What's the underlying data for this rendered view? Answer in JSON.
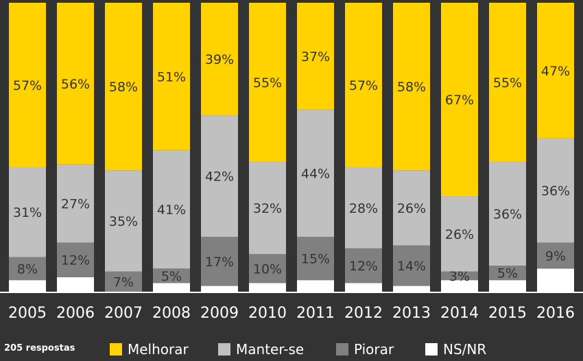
{
  "chart_data": {
    "type": "bar",
    "stacked": true,
    "normalized_percent": true,
    "categories": [
      "2005",
      "2006",
      "2007",
      "2008",
      "2009",
      "2010",
      "2011",
      "2012",
      "2013",
      "2014",
      "2015",
      "2016"
    ],
    "series": [
      {
        "name": "NS/NR",
        "color": "#ffffff",
        "values": [
          4,
          5,
          0,
          3,
          2,
          3,
          4,
          3,
          2,
          4,
          4,
          8
        ],
        "labels": [
          "",
          "",
          "",
          "",
          "",
          "",
          "",
          "",
          "",
          "",
          "",
          ""
        ]
      },
      {
        "name": "Piorar",
        "color": "#808080",
        "values": [
          8,
          12,
          7,
          5,
          17,
          10,
          15,
          12,
          14,
          3,
          5,
          9
        ],
        "labels": [
          "8%",
          "12%",
          "7%",
          "5%",
          "17%",
          "10%",
          "15%",
          "12%",
          "14%",
          "3%",
          "5%",
          "9%"
        ]
      },
      {
        "name": "Manter-se",
        "color": "#c0c0c0",
        "values": [
          31,
          27,
          35,
          41,
          42,
          32,
          44,
          28,
          26,
          26,
          36,
          36
        ],
        "labels": [
          "31%",
          "27%",
          "35%",
          "41%",
          "42%",
          "32%",
          "44%",
          "28%",
          "26%",
          "26%",
          "36%",
          "36%"
        ]
      },
      {
        "name": "Melhorar",
        "color": "#ffd200",
        "values": [
          57,
          56,
          58,
          51,
          39,
          55,
          37,
          57,
          58,
          67,
          55,
          47
        ],
        "labels": [
          "57%",
          "56%",
          "58%",
          "51%",
          "39%",
          "55%",
          "37%",
          "57%",
          "58%",
          "67%",
          "55%",
          "47%"
        ]
      }
    ],
    "ylim": [
      0,
      100
    ],
    "grid": false,
    "legend": "bottom",
    "note": "205 respostas"
  }
}
